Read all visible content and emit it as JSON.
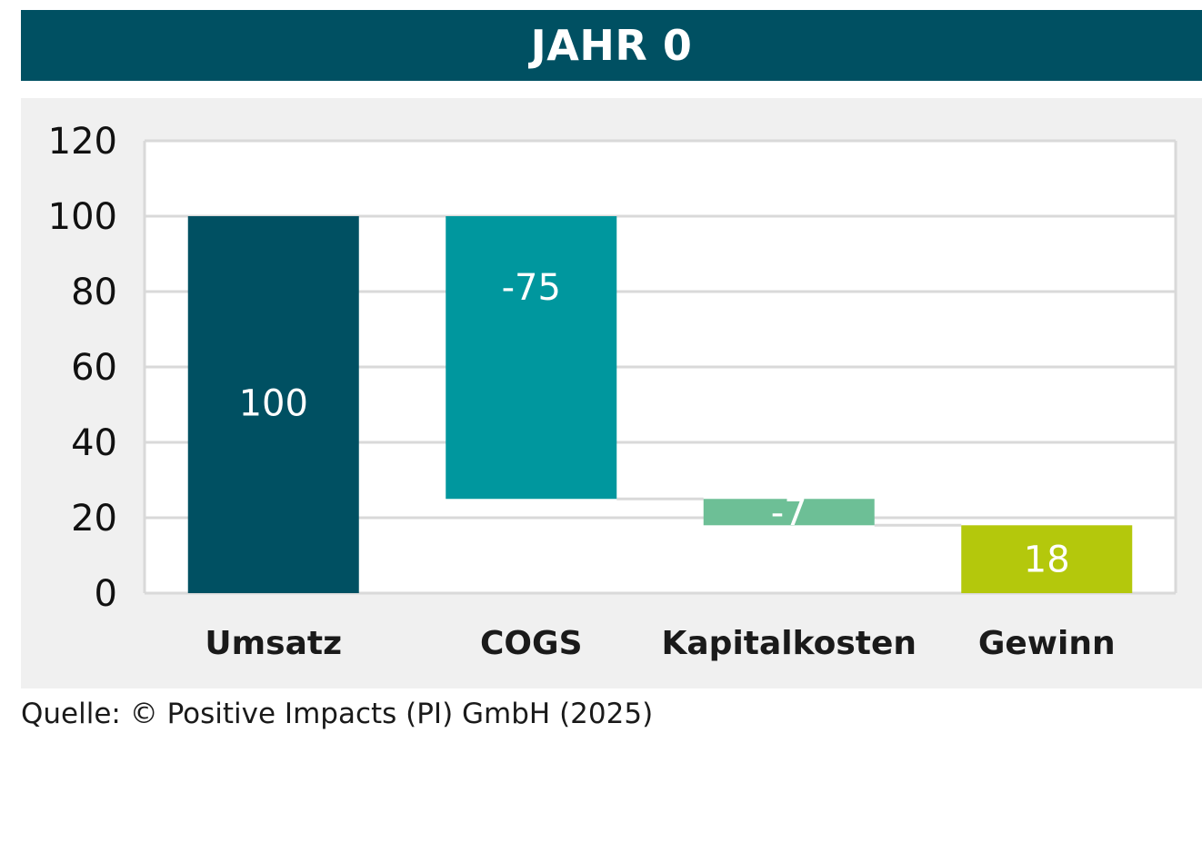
{
  "header": {
    "title": "JAHR 0"
  },
  "footer": {
    "source": "Quelle: © Positive Impacts (PI) GmbH (2025)"
  },
  "colors": {
    "title_bg": "#005062",
    "panel_bg": "#f0f0f0",
    "plot_bg": "#ffffff",
    "grid": "#d9d9d9",
    "umsatz": "#005062",
    "cogs": "#00979e",
    "kapitalkosten": "#6dbf96",
    "gewinn": "#b4c80c"
  },
  "chart_data": {
    "type": "bar",
    "subtype": "waterfall",
    "categories": [
      "Umsatz",
      "COGS",
      "Kapitalkosten",
      "Gewinn"
    ],
    "values": [
      100,
      -75,
      -7,
      18
    ],
    "bar_ranges": [
      [
        0,
        100
      ],
      [
        25,
        100
      ],
      [
        18,
        25
      ],
      [
        0,
        18
      ]
    ],
    "data_labels": [
      "100",
      "-75",
      "-7",
      "18"
    ],
    "bar_colors": [
      "#005062",
      "#00979e",
      "#6dbf96",
      "#b4c80c"
    ],
    "ylim": [
      0,
      120
    ],
    "yticks": [
      0,
      20,
      40,
      60,
      80,
      100,
      120
    ],
    "grid": true,
    "legend": "none"
  }
}
